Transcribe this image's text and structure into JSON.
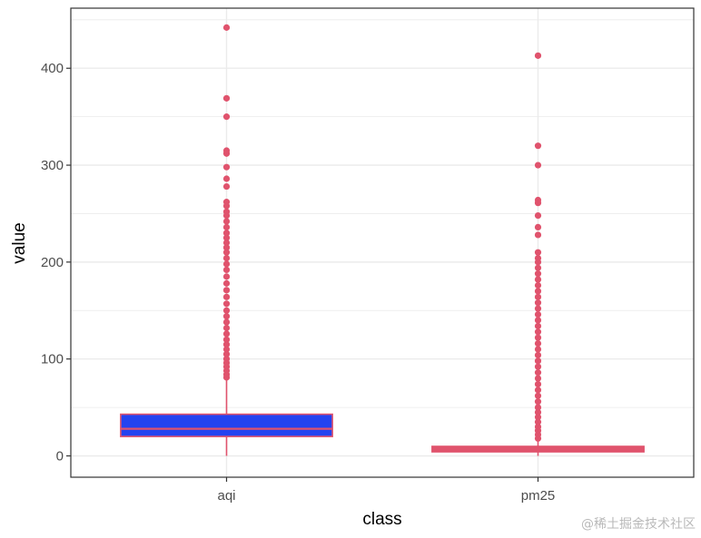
{
  "chart_data": {
    "type": "box",
    "title": "",
    "xlabel": "class",
    "ylabel": "value",
    "categories": [
      "aqi",
      "pm25"
    ],
    "ylim": [
      -22,
      462
    ],
    "yticks": [
      0,
      100,
      200,
      300,
      400
    ],
    "grid": true,
    "legend": "none",
    "box_fill": "#2443f0",
    "box_outline": "#e0536d",
    "outlier_color": "#e0536d",
    "panel_border": "#333333",
    "grid_color": "#ebebeb",
    "boxes": [
      {
        "category": "aqi",
        "whisker_low": 0,
        "q1": 20,
        "median": 28,
        "q3": 43,
        "whisker_high": 80,
        "outliers": [
          81,
          84,
          88,
          92,
          96,
          100,
          105,
          110,
          115,
          120,
          126,
          132,
          138,
          144,
          150,
          157,
          164,
          171,
          178,
          185,
          192,
          198,
          204,
          210,
          215,
          220,
          225,
          230,
          236,
          242,
          248,
          252,
          258,
          262,
          278,
          286,
          298,
          312,
          315,
          350,
          369,
          442
        ]
      },
      {
        "category": "pm25",
        "whisker_low": 0,
        "q1": 5,
        "median": 7,
        "q3": 9,
        "whisker_high": 15,
        "outliers": [
          18,
          22,
          26,
          30,
          35,
          40,
          45,
          50,
          56,
          62,
          68,
          74,
          80,
          86,
          92,
          98,
          104,
          110,
          116,
          122,
          128,
          134,
          140,
          146,
          152,
          158,
          164,
          170,
          176,
          182,
          188,
          194,
          200,
          204,
          210,
          228,
          236,
          248,
          261,
          264,
          300,
          320,
          413
        ]
      }
    ]
  },
  "watermark": "@稀土掘金技术社区"
}
